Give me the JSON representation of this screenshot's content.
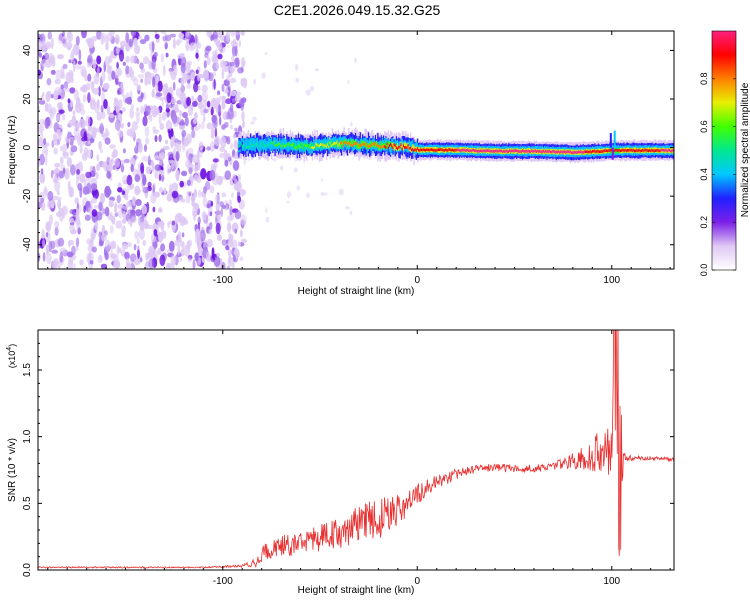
{
  "figure": {
    "title": "C2E1.2026.049.15.32.G25"
  },
  "chart_data": [
    {
      "type": "heatmap",
      "title": "C2E1.2026.049.15.32.G25",
      "xlabel": "Height of straight line (km)",
      "ylabel": "Frequency (Hz)",
      "xlim": [
        -195,
        132
      ],
      "ylim": [
        -50,
        48
      ],
      "xticks": [
        {
          "value": -100,
          "label": "-100"
        },
        {
          "value": 0,
          "label": "0"
        },
        {
          "value": 100,
          "label": "100"
        }
      ],
      "yticks": [
        {
          "value": -40,
          "label": "-40"
        },
        {
          "value": -20,
          "label": "-20"
        },
        {
          "value": 0,
          "label": "0"
        },
        {
          "value": 20,
          "label": "20"
        },
        {
          "value": 40,
          "label": "40"
        }
      ],
      "noise_region_x": [
        -195,
        -89
      ],
      "ridge": {
        "x": [
          -92,
          -85,
          -75,
          -65,
          -55,
          -45,
          -35,
          -25,
          -15,
          -5,
          0,
          10,
          20,
          40,
          60,
          80,
          95,
          100,
          132
        ],
        "freq_hz": [
          0.5,
          1.0,
          1.5,
          0.8,
          0.5,
          1.2,
          1.8,
          1.0,
          0.8,
          0.2,
          -1.0,
          -1.0,
          -1.0,
          -1.5,
          -1.5,
          -2.0,
          -1.5,
          -1.2,
          -1.2
        ],
        "amplitude": [
          0.45,
          0.5,
          0.55,
          0.6,
          0.65,
          0.72,
          0.78,
          0.82,
          0.86,
          0.9,
          0.92,
          0.93,
          0.95,
          0.96,
          0.97,
          0.98,
          0.9,
          0.85,
          0.98
        ]
      },
      "colorbar": {
        "label": "Normalized spectral amplitude",
        "range": [
          0,
          1
        ],
        "ticks": [
          {
            "value": 0,
            "label": "0.0"
          },
          {
            "value": 0.2,
            "label": "0.2"
          },
          {
            "value": 0.4,
            "label": "0.4"
          },
          {
            "value": 0.6,
            "label": "0.6"
          },
          {
            "value": 0.8,
            "label": "0.8"
          }
        ],
        "colors": [
          "#ffffff",
          "#e0c8f4",
          "#7a20e8",
          "#2020ff",
          "#00c8ff",
          "#00e890",
          "#40ff00",
          "#e8f000",
          "#ff8000",
          "#ff0000",
          "#ff2080"
        ]
      }
    },
    {
      "type": "line",
      "xlabel": "Height of straight line (km)",
      "ylabel": "SNR (10 * v/v)",
      "y_multiplier": "(x10",
      "y_multiplier_exp": "4",
      "y_multiplier_close": ")",
      "xlim": [
        -195,
        132
      ],
      "ylim": [
        0,
        1.8
      ],
      "line_color": "#e83030",
      "xticks": [
        {
          "value": -100,
          "label": "-100"
        },
        {
          "value": 0,
          "label": "0"
        },
        {
          "value": 100,
          "label": "100"
        }
      ],
      "yticks": [
        {
          "value": 0,
          "label": "0.0"
        },
        {
          "value": 0.5,
          "label": "0.5"
        },
        {
          "value": 1.0,
          "label": "1.0"
        },
        {
          "value": 1.5,
          "label": "1.5"
        }
      ],
      "series": [
        {
          "name": "SNR",
          "x": [
            -195,
            -170,
            -140,
            -110,
            -90,
            -82,
            -78,
            -70,
            -60,
            -50,
            -40,
            -30,
            -20,
            -10,
            -5,
            0,
            10,
            20,
            30,
            40,
            50,
            60,
            70,
            80,
            88,
            92,
            96,
            100,
            102,
            104,
            106,
            110,
            120,
            132
          ],
          "y": [
            0.02,
            0.02,
            0.02,
            0.02,
            0.03,
            0.06,
            0.15,
            0.18,
            0.2,
            0.24,
            0.28,
            0.35,
            0.38,
            0.45,
            0.5,
            0.58,
            0.65,
            0.72,
            0.76,
            0.77,
            0.76,
            0.76,
            0.78,
            0.82,
            0.85,
            0.88,
            0.9,
            1.05,
            1.3,
            0.4,
            0.85,
            0.84,
            0.84,
            0.83
          ],
          "noise_amplitude": [
            0.005,
            0.005,
            0.005,
            0.005,
            0.01,
            0.04,
            0.07,
            0.08,
            0.09,
            0.1,
            0.12,
            0.14,
            0.16,
            0.12,
            0.1,
            0.08,
            0.06,
            0.04,
            0.03,
            0.03,
            0.03,
            0.03,
            0.03,
            0.06,
            0.1,
            0.15,
            0.2,
            0.35,
            0.5,
            0.3,
            0.03,
            0.02,
            0.015,
            0.015
          ]
        }
      ]
    }
  ]
}
